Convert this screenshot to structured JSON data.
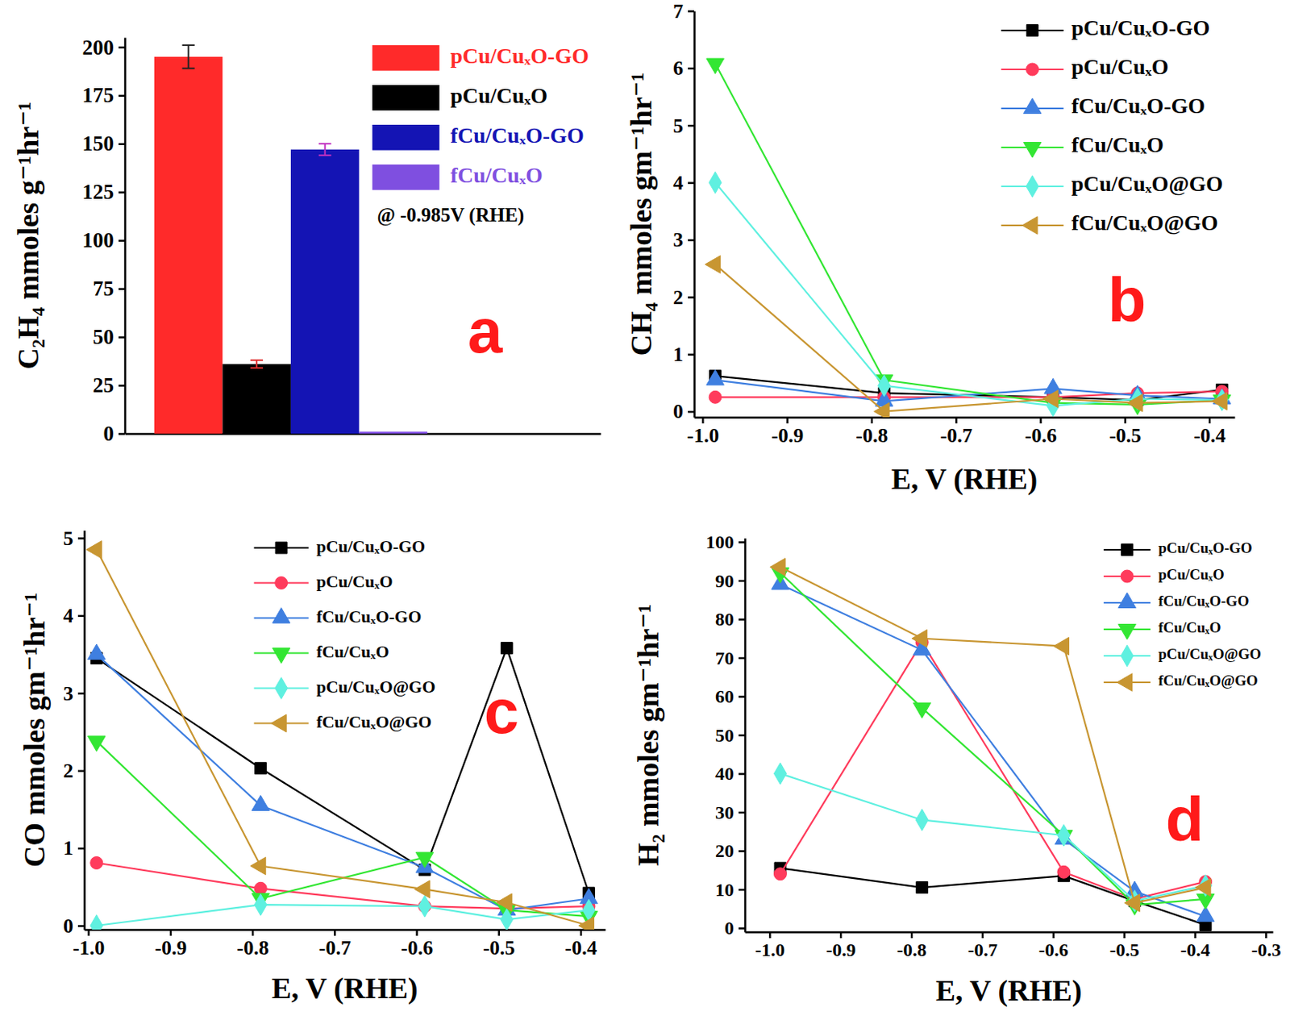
{
  "chart_data": [
    {
      "type": "bar",
      "title": "a",
      "y_label": "C₂H₄ mmoles g⁻¹hr⁻¹",
      "categories": [
        "pCu/CuₓO-GO",
        "pCu/CuₓO",
        "fCu/CuₓO-GO",
        "fCu/CuₓO"
      ],
      "values": [
        195,
        36,
        147,
        1
      ],
      "errors": [
        6,
        2,
        3,
        0
      ],
      "colors": [
        "#ff2a2a",
        "#000000",
        "#1414b4",
        "#7f4fe0"
      ],
      "ylim": [
        0,
        205
      ],
      "yticks": [
        0,
        25,
        50,
        75,
        100,
        125,
        150,
        175,
        200
      ],
      "tick_labels": "y",
      "legend": "upper right",
      "annotations": [
        "@ -0.985V (RHE)"
      ]
    },
    {
      "type": "line",
      "title": "b",
      "x_label": "E, V (RHE)",
      "y_label": "CH₄ mmoles gm⁻¹hr⁻¹",
      "x": [
        -0.985,
        -0.785,
        -0.585,
        -0.485,
        -0.385
      ],
      "series": [
        {
          "name": "pCu/CuₓO-GO",
          "color": "#000000",
          "marker": "square",
          "values": [
            0.62,
            0.32,
            0.25,
            0.2,
            0.38
          ]
        },
        {
          "name": "pCu/CuₓO",
          "color": "#ff3b5c",
          "marker": "circle",
          "values": [
            0.25,
            0.25,
            0.25,
            0.32,
            0.35
          ]
        },
        {
          "name": "fCu/CuₓO-GO",
          "color": "#3f7fe0",
          "marker": "triangle-up",
          "values": [
            0.55,
            0.18,
            0.4,
            0.28,
            0.22
          ]
        },
        {
          "name": "fCu/CuₓO",
          "color": "#33e633",
          "marker": "triangle-down",
          "values": [
            6.08,
            0.55,
            0.15,
            0.12,
            0.2
          ]
        },
        {
          "name": "pCu/CuₓO@GO",
          "color": "#5ff0e0",
          "marker": "diamond",
          "values": [
            4.0,
            0.45,
            0.1,
            0.22,
            0.2
          ]
        },
        {
          "name": "fCu/CuₓO@GO",
          "color": "#c89632",
          "marker": "triangle-left",
          "values": [
            2.57,
            0.0,
            0.22,
            0.15,
            0.18
          ]
        }
      ],
      "xlim": [
        -1.01,
        -0.37
      ],
      "ylim": [
        -0.1,
        7
      ],
      "xticks": [
        {
          "value": -1,
          "label": "-1.0"
        },
        -0.9,
        -0.8,
        -0.7,
        -0.6,
        -0.5,
        -0.4
      ],
      "yticks": [
        0,
        1,
        2,
        3,
        4,
        5,
        6,
        7
      ],
      "legend": "upper right"
    },
    {
      "type": "line",
      "title": "c",
      "x_label": "E, V (RHE)",
      "y_label": "CO mmoles gm⁻¹hr⁻¹",
      "x": [
        -0.99,
        -0.79,
        -0.59,
        -0.49,
        -0.39
      ],
      "series": [
        {
          "name": "pCu/CuₓO-GO",
          "color": "#000000",
          "marker": "square",
          "values": [
            3.45,
            2.03,
            0.72,
            3.58,
            0.42
          ]
        },
        {
          "name": "pCu/CuₓO",
          "color": "#ff3b5c",
          "marker": "circle",
          "values": [
            0.81,
            0.48,
            0.25,
            0.22,
            0.25
          ]
        },
        {
          "name": "fCu/CuₓO-GO",
          "color": "#3f7fe0",
          "marker": "triangle-up",
          "values": [
            3.5,
            1.55,
            0.75,
            0.2,
            0.35
          ]
        },
        {
          "name": "fCu/CuₓO",
          "color": "#33e633",
          "marker": "triangle-down",
          "values": [
            2.38,
            0.35,
            0.88,
            0.2,
            0.12
          ]
        },
        {
          "name": "pCu/CuₓO@GO",
          "color": "#5ff0e0",
          "marker": "diamond",
          "values": [
            0.0,
            0.27,
            0.25,
            0.08,
            0.2
          ]
        },
        {
          "name": "fCu/CuₓO@GO",
          "color": "#c89632",
          "marker": "triangle-left",
          "values": [
            4.85,
            0.77,
            0.47,
            0.3,
            0.0
          ]
        }
      ],
      "xlim": [
        -1.005,
        -0.37
      ],
      "ylim": [
        -0.05,
        5.1
      ],
      "xticks": [
        {
          "value": -1,
          "label": "-1.0"
        },
        -0.9,
        -0.8,
        -0.7,
        -0.6,
        -0.5,
        -0.4
      ],
      "yticks": [
        0,
        1,
        2,
        3,
        4,
        5
      ],
      "legend": "upper center"
    },
    {
      "type": "line",
      "title": "d",
      "x_label": "E, V (RHE)",
      "y_label": "H₂ mmoles gm⁻¹hr⁻¹",
      "x": [
        -0.985,
        -0.785,
        -0.585,
        -0.485,
        -0.385
      ],
      "series": [
        {
          "name": "pCu/CuₓO-GO",
          "color": "#000000",
          "marker": "square",
          "values": [
            15.5,
            10.5,
            13.5,
            7,
            0.8
          ]
        },
        {
          "name": "pCu/CuₓO",
          "color": "#ff3b5c",
          "marker": "circle",
          "values": [
            14,
            74,
            14.5,
            7.5,
            12
          ]
        },
        {
          "name": "fCu/CuₓO-GO",
          "color": "#3f7fe0",
          "marker": "triangle-up",
          "values": [
            89,
            72,
            23,
            9.5,
            3
          ]
        },
        {
          "name": "fCu/CuₓO",
          "color": "#33e633",
          "marker": "triangle-down",
          "values": [
            92,
            57,
            24,
            6,
            7.5
          ]
        },
        {
          "name": "pCu/CuₓO@GO",
          "color": "#5ff0e0",
          "marker": "diamond",
          "values": [
            40,
            28,
            24,
            7,
            11
          ]
        },
        {
          "name": "fCu/CuₓO@GO",
          "color": "#c89632",
          "marker": "triangle-left",
          "values": [
            93.5,
            75,
            73,
            6.5,
            10.5
          ]
        }
      ],
      "xlim": [
        -1.035,
        -0.29
      ],
      "ylim": [
        -1,
        101
      ],
      "xticks": [
        {
          "value": -1,
          "label": "-1.0"
        },
        -0.9,
        -0.8,
        -0.7,
        -0.6,
        -0.5,
        -0.4,
        -0.3
      ],
      "yticks": [
        0,
        10,
        20,
        30,
        40,
        50,
        60,
        70,
        80,
        90,
        100
      ],
      "legend": "upper right"
    }
  ]
}
